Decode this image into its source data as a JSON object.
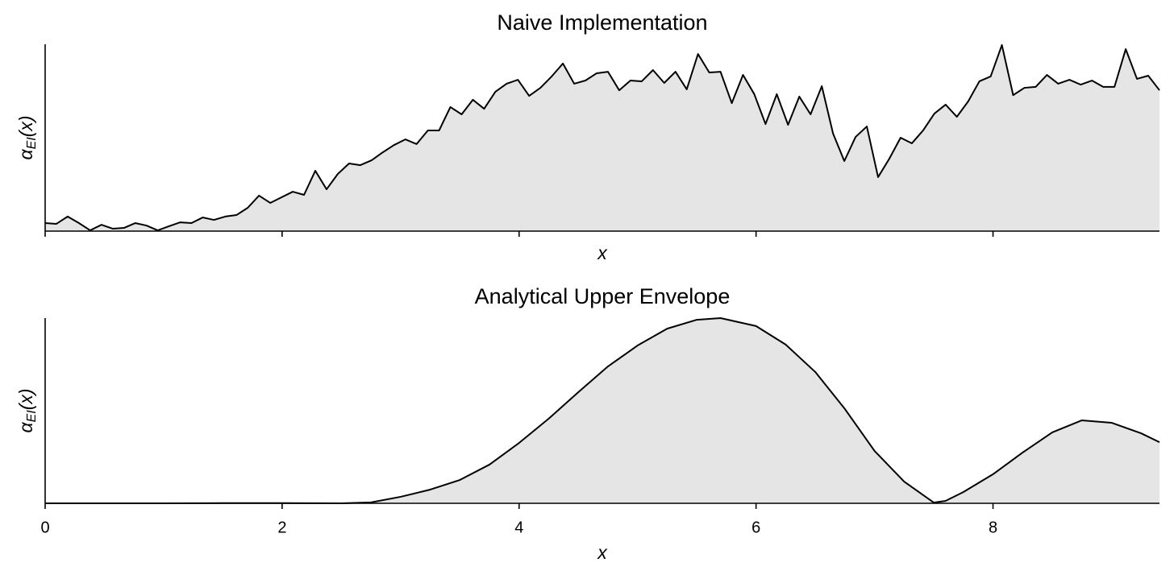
{
  "chart_data": [
    {
      "type": "area",
      "title": "Naive Implementation",
      "xlabel": "x",
      "ylabel": [
        "α",
        "EI",
        "(x)"
      ],
      "x": [
        0,
        0.095,
        0.19,
        0.285,
        0.38,
        0.475,
        0.57,
        0.665,
        0.76,
        0.855,
        0.95,
        1.045,
        1.14,
        1.235,
        1.33,
        1.425,
        1.52,
        1.615,
        1.71,
        1.805,
        1.9,
        1.995,
        2.09,
        2.185,
        2.28,
        2.375,
        2.47,
        2.565,
        2.66,
        2.755,
        2.85,
        2.945,
        3.04,
        3.135,
        3.23,
        3.325,
        3.42,
        3.515,
        3.61,
        3.705,
        3.8,
        3.895,
        3.99,
        4.085,
        4.18,
        4.275,
        4.37,
        4.465,
        4.56,
        4.655,
        4.75,
        4.845,
        4.94,
        5.035,
        5.13,
        5.225,
        5.32,
        5.415,
        5.51,
        5.605,
        5.7,
        5.795,
        5.89,
        5.985,
        6.08,
        6.175,
        6.27,
        6.365,
        6.46,
        6.555,
        6.65,
        6.745,
        6.84,
        6.935,
        7.03,
        7.125,
        7.22,
        7.315,
        7.41,
        7.505,
        7.6,
        7.695,
        7.79,
        7.885,
        7.98,
        8.075,
        8.17,
        8.265,
        8.36,
        8.455,
        8.55,
        8.645,
        8.74,
        8.835,
        8.93,
        9.025,
        9.12,
        9.215,
        9.31,
        9.405
      ],
      "values": [
        0.043,
        0.039,
        0.078,
        0.043,
        0.004,
        0.034,
        0.013,
        0.017,
        0.043,
        0.03,
        0.004,
        0.026,
        0.047,
        0.043,
        0.073,
        0.06,
        0.078,
        0.086,
        0.125,
        0.19,
        0.151,
        0.181,
        0.211,
        0.194,
        0.323,
        0.224,
        0.306,
        0.362,
        0.353,
        0.379,
        0.422,
        0.461,
        0.491,
        0.466,
        0.539,
        0.539,
        0.664,
        0.625,
        0.703,
        0.655,
        0.746,
        0.789,
        0.81,
        0.724,
        0.767,
        0.828,
        0.897,
        0.789,
        0.806,
        0.845,
        0.853,
        0.754,
        0.806,
        0.802,
        0.862,
        0.793,
        0.853,
        0.759,
        0.948,
        0.849,
        0.853,
        0.685,
        0.836,
        0.733,
        0.573,
        0.733,
        0.569,
        0.72,
        0.625,
        0.776,
        0.522,
        0.375,
        0.504,
        0.56,
        0.289,
        0.388,
        0.5,
        0.47,
        0.539,
        0.629,
        0.677,
        0.612,
        0.694,
        0.802,
        0.828,
        0.996,
        0.728,
        0.767,
        0.772,
        0.836,
        0.789,
        0.81,
        0.784,
        0.806,
        0.772,
        0.772,
        0.974,
        0.815,
        0.832,
        0.754
      ],
      "color": "#000000",
      "fill": "#e5e5e5",
      "xlim": [
        0,
        9.405
      ],
      "xticks": [
        0,
        2,
        4,
        6,
        8
      ],
      "ylim": [
        0,
        1
      ]
    },
    {
      "type": "area",
      "title": "Analytical Upper Envelope",
      "xlabel": "x",
      "ylabel": [
        "α",
        "EI",
        "(x)"
      ],
      "x": [
        0,
        0.5,
        1,
        1.5,
        2,
        2.5,
        2.75,
        3,
        3.25,
        3.5,
        3.75,
        4,
        4.25,
        4.5,
        4.75,
        5,
        5.25,
        5.5,
        5.7,
        6,
        6.25,
        6.5,
        6.75,
        7,
        7.25,
        7.5,
        7.6,
        7.75,
        8,
        8.25,
        8.5,
        8.75,
        9,
        9.25,
        9.405
      ],
      "values": [
        0,
        0,
        0,
        0.001,
        0.001,
        0,
        0.005,
        0.035,
        0.074,
        0.126,
        0.209,
        0.326,
        0.457,
        0.6,
        0.739,
        0.852,
        0.943,
        0.991,
        1.0,
        0.957,
        0.857,
        0.709,
        0.509,
        0.283,
        0.117,
        0.004,
        0.013,
        0.061,
        0.157,
        0.274,
        0.383,
        0.448,
        0.435,
        0.378,
        0.33
      ],
      "color": "#000000",
      "fill": "#e5e5e5",
      "xlim": [
        0,
        9.405
      ],
      "xticks": [
        0,
        2,
        4,
        6,
        8
      ],
      "ylim": [
        0,
        1
      ]
    }
  ]
}
